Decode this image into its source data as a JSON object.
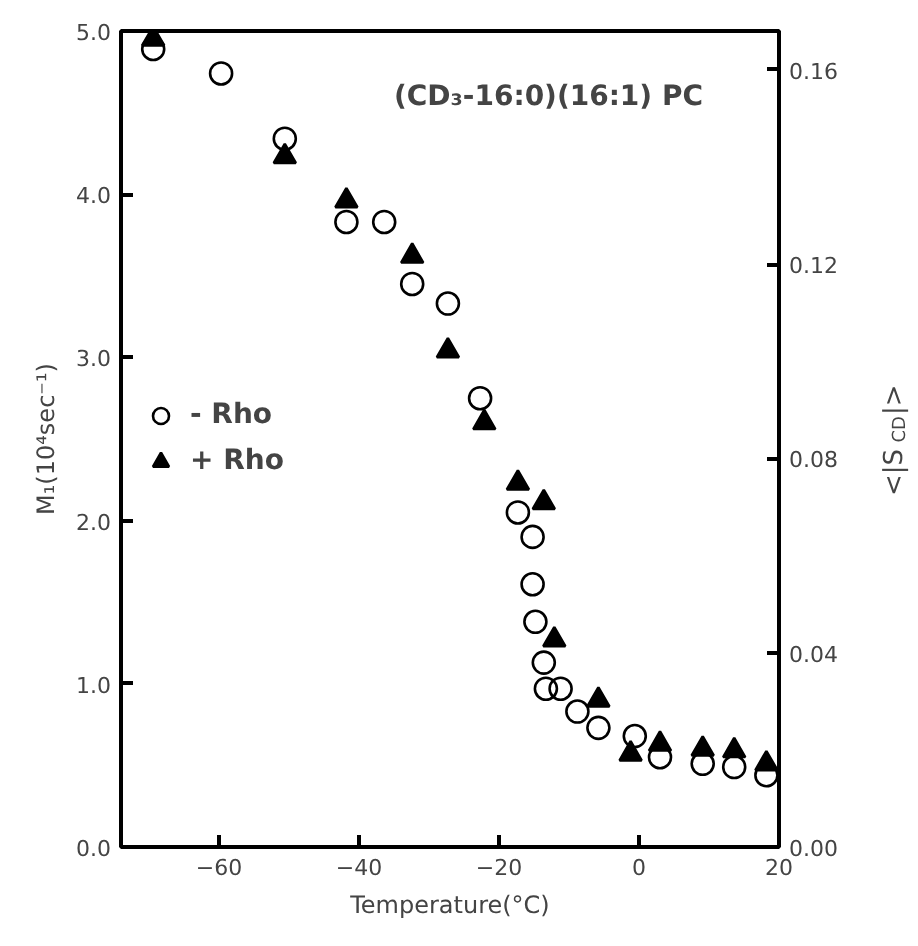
{
  "chart_data": {
    "type": "scatter",
    "xlabel": "Temperature(°C)",
    "ylabel": "M₁(10⁴sec⁻¹)",
    "y2label": "<|S$_{CD}$|>",
    "annotations": [
      "(CD₃-16:0)(16:1) PC"
    ],
    "xlim": [
      -74,
      20
    ],
    "xticks": [
      -60,
      -40,
      -20,
      0,
      20
    ],
    "ylim": [
      0,
      5.0
    ],
    "yticks": [
      {
        "value": 0,
        "label": "0.0"
      },
      {
        "value": 1,
        "label": "1.0"
      },
      {
        "value": 2,
        "label": "2.0"
      },
      {
        "value": 3,
        "label": "3.0"
      },
      {
        "value": 4,
        "label": "4.0"
      },
      {
        "value": 5,
        "label": "5.0"
      }
    ],
    "y2lim": [
      0,
      0.168
    ],
    "y2ticks": [
      {
        "value": 0,
        "label": "0.00"
      },
      {
        "value": 0.04,
        "label": "0.04"
      },
      {
        "value": 0.08,
        "label": "0.08"
      },
      {
        "value": 0.12,
        "label": "0.12"
      },
      {
        "value": 0.16,
        "label": "0.16"
      }
    ],
    "grid": false,
    "legend": "left",
    "series": [
      {
        "name": "- Rho",
        "color": "#000000",
        "marker": "circle",
        "x": [
          -69.4,
          -59.7,
          -50.6,
          -41.8,
          -36.4,
          -32.4,
          -27.3,
          -22.7,
          -17.3,
          -15.2,
          -15.2,
          -14.8,
          -13.6,
          -13.3,
          -11.2,
          -8.8,
          -5.8,
          -0.6,
          3.0,
          9.1,
          13.6,
          18.2
        ],
        "values": [
          4.89,
          4.74,
          4.34,
          3.83,
          3.83,
          3.45,
          3.33,
          2.75,
          2.05,
          1.9,
          1.61,
          1.38,
          1.13,
          0.97,
          0.97,
          0.83,
          0.73,
          0.68,
          0.55,
          0.51,
          0.49,
          0.44
        ]
      },
      {
        "name": "+ Rho",
        "color": "#000000",
        "marker": "triangle",
        "x": [
          -69.4,
          -50.6,
          -41.8,
          -32.4,
          -27.3,
          -22.1,
          -17.3,
          -13.6,
          -12.1,
          -5.8,
          -1.2,
          3.0,
          9.1,
          13.6,
          18.2
        ],
        "values": [
          4.95,
          4.23,
          3.96,
          3.62,
          3.04,
          2.6,
          2.23,
          2.11,
          1.27,
          0.9,
          0.57,
          0.63,
          0.6,
          0.59,
          0.51
        ]
      }
    ]
  }
}
